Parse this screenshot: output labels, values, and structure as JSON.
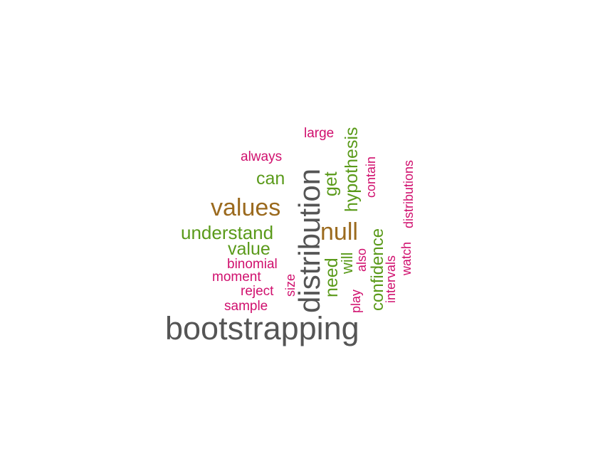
{
  "palette": {
    "gray": "#555555",
    "brown": "#9b6a1e",
    "green": "#5a9a1a",
    "magenta": "#d0106e"
  },
  "words": [
    {
      "text": "bootstrapping",
      "color": "gray",
      "rotated": false
    },
    {
      "text": "distribution",
      "color": "gray",
      "rotated": true
    },
    {
      "text": "values",
      "color": "brown",
      "rotated": false
    },
    {
      "text": "null",
      "color": "brown",
      "rotated": false
    },
    {
      "text": "understand",
      "color": "green",
      "rotated": false
    },
    {
      "text": "value",
      "color": "green",
      "rotated": false
    },
    {
      "text": "can",
      "color": "green",
      "rotated": false
    },
    {
      "text": "hypothesis",
      "color": "green",
      "rotated": true
    },
    {
      "text": "get",
      "color": "green",
      "rotated": true
    },
    {
      "text": "need",
      "color": "green",
      "rotated": true
    },
    {
      "text": "will",
      "color": "green",
      "rotated": true
    },
    {
      "text": "confidence",
      "color": "green",
      "rotated": true
    },
    {
      "text": "always",
      "color": "magenta",
      "rotated": false
    },
    {
      "text": "large",
      "color": "magenta",
      "rotated": false
    },
    {
      "text": "binomial",
      "color": "magenta",
      "rotated": false
    },
    {
      "text": "moment",
      "color": "magenta",
      "rotated": false
    },
    {
      "text": "reject",
      "color": "magenta",
      "rotated": false
    },
    {
      "text": "sample",
      "color": "magenta",
      "rotated": false
    },
    {
      "text": "size",
      "color": "magenta",
      "rotated": true
    },
    {
      "text": "play",
      "color": "magenta",
      "rotated": true
    },
    {
      "text": "also",
      "color": "magenta",
      "rotated": true
    },
    {
      "text": "contain",
      "color": "magenta",
      "rotated": true
    },
    {
      "text": "intervals",
      "color": "magenta",
      "rotated": true
    },
    {
      "text": "watch",
      "color": "magenta",
      "rotated": true
    },
    {
      "text": "distributions",
      "color": "magenta",
      "rotated": true
    }
  ]
}
